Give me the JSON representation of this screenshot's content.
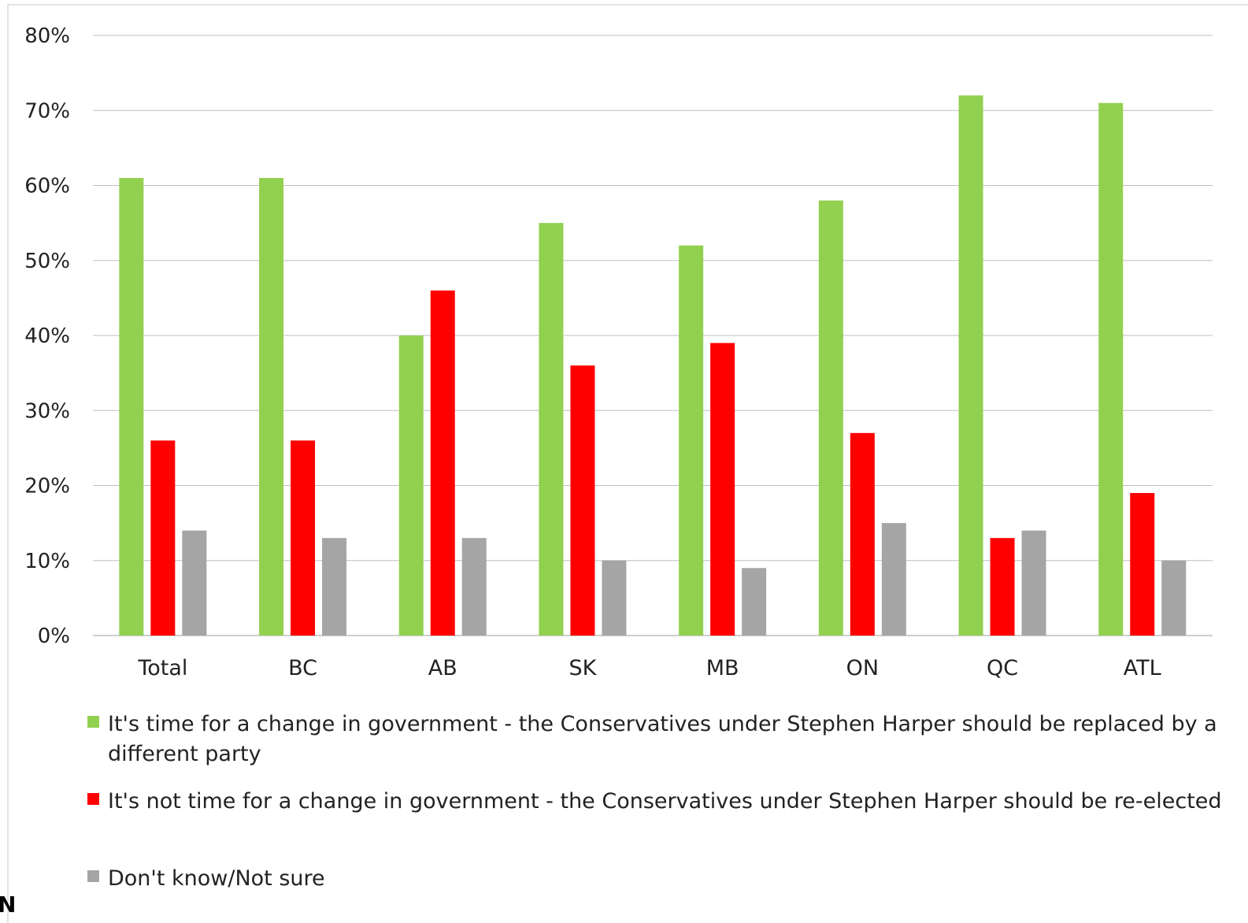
{
  "chart_data": {
    "type": "bar",
    "title": "",
    "xlabel": "",
    "ylabel": "",
    "categories": [
      "Total",
      "BC",
      "AB",
      "SK",
      "MB",
      "ON",
      "QC",
      "ATL"
    ],
    "ylim": [
      0,
      80
    ],
    "yticks": [
      "0%",
      "10%",
      "20%",
      "30%",
      "40%",
      "50%",
      "60%",
      "70%",
      "80%"
    ],
    "grid": true,
    "legend_position": "bottom",
    "series": [
      {
        "name": "It's time for a change in government - the Conservatives under Stephen Harper should be replaced by a different party",
        "name_lines": [
          "It's time for a change in government - the Conservatives under Stephen Harper should be replaced by a",
          "different party"
        ],
        "color": "#92d050",
        "values": [
          61,
          61,
          40,
          55,
          52,
          58,
          72,
          71
        ]
      },
      {
        "name": "It's not time for a change in government - the Conservatives under Stephen Harper should be re-elected",
        "name_lines": [
          "It's not time for a change in government - the Conservatives under Stephen Harper should be re-elected"
        ],
        "color": "#ff0000",
        "values": [
          26,
          26,
          46,
          36,
          39,
          27,
          13,
          19
        ]
      },
      {
        "name": "Don't know/Not sure",
        "name_lines": [
          "Don't know/Not sure"
        ],
        "color": "#a5a5a5",
        "values": [
          14,
          13,
          13,
          10,
          9,
          15,
          14,
          10
        ]
      }
    ]
  },
  "stray_text": "N"
}
